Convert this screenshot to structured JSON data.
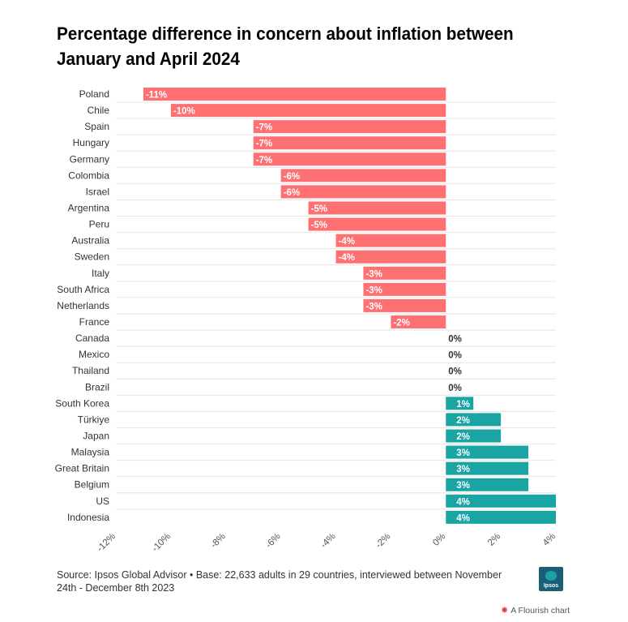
{
  "title": "Percentage difference in concern about inflation between January and April 2024",
  "footer": {
    "source": "Source: Ipsos Global Advisor • Base: 22,633 adults in 29 countries, interviewed between November 24th - December 8th 2023",
    "logo_text": "Ipsos",
    "logo_icon": "ipsos-logo-icon",
    "flourish_icon": "flourish-star-icon",
    "flourish_label": "A Flourish chart"
  },
  "chart_data": {
    "type": "bar",
    "orientation": "horizontal",
    "categories": [
      "Poland",
      "Chile",
      "Spain",
      "Hungary",
      "Germany",
      "Colombia",
      "Israel",
      "Argentina",
      "Peru",
      "Australia",
      "Sweden",
      "Italy",
      "South Africa",
      "Netherlands",
      "France",
      "Canada",
      "Mexico",
      "Thailand",
      "Brazil",
      "South Korea",
      "Türkiye",
      "Japan",
      "Malaysia",
      "Great Britain",
      "Belgium",
      "US",
      "Indonesia"
    ],
    "values": [
      -11,
      -10,
      -7,
      -7,
      -7,
      -6,
      -6,
      -5,
      -5,
      -4,
      -4,
      -3,
      -3,
      -3,
      -2,
      0,
      0,
      0,
      0,
      1,
      2,
      2,
      3,
      3,
      3,
      4,
      4
    ],
    "data_labels": [
      "-11%",
      "-10%",
      "-7%",
      "-7%",
      "-7%",
      "-6%",
      "-6%",
      "-5%",
      "-5%",
      "-4%",
      "-4%",
      "-3%",
      "-3%",
      "-3%",
      "-2%",
      "0%",
      "0%",
      "0%",
      "0%",
      "1%",
      "2%",
      "2%",
      "3%",
      "3%",
      "3%",
      "4%",
      "4%"
    ],
    "xlim": [
      -12,
      4
    ],
    "x_ticks": [
      -12,
      -10,
      -8,
      -6,
      -4,
      -2,
      0,
      2,
      4
    ],
    "x_tick_labels": [
      "-12%",
      "-10%",
      "-8%",
      "-6%",
      "-4%",
      "-2%",
      "0%",
      "2%",
      "4%"
    ],
    "colors": {
      "negative": "#fe7072",
      "positive": "#1aa4a4",
      "grid": "#e6e6e6",
      "zero_label": "#333333"
    },
    "grid": true
  }
}
